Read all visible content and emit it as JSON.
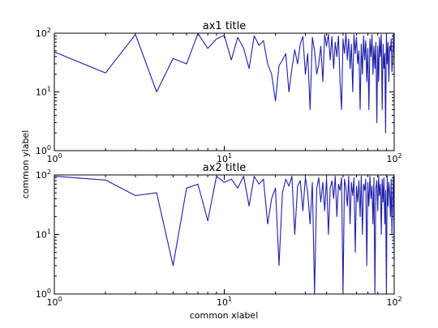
{
  "figure": {
    "common_xlabel": "common xlabel",
    "common_ylabel": "common ylabel"
  },
  "chart_data": [
    {
      "type": "line",
      "title": "ax1 title",
      "xlabel": "",
      "ylabel": "",
      "xscale": "log",
      "yscale": "log",
      "xlim": [
        1,
        100
      ],
      "ylim": [
        1,
        100
      ],
      "grid": false,
      "legend": "none",
      "line_color": "#1f1fa8",
      "xticks": [
        {
          "value": 1,
          "label": "10",
          "sup": "0"
        },
        {
          "value": 10,
          "label": "10",
          "sup": "1"
        },
        {
          "value": 100,
          "label": "10",
          "sup": "2"
        }
      ],
      "yticks": [
        {
          "value": 1,
          "label": "10",
          "sup": "0"
        },
        {
          "value": 10,
          "label": "10",
          "sup": "1"
        },
        {
          "value": 100,
          "label": "10",
          "sup": "2"
        }
      ],
      "series": [
        {
          "x": [
            1,
            2,
            3,
            4,
            5,
            6,
            7,
            8,
            9,
            10,
            11,
            12,
            13,
            14,
            15,
            16,
            17,
            18,
            19,
            20,
            21,
            22,
            23,
            24,
            25,
            26,
            27,
            28,
            29,
            30,
            31,
            32,
            33,
            34,
            35,
            36,
            37,
            38,
            39,
            40,
            41,
            42,
            43,
            44,
            45,
            46,
            47,
            48,
            49,
            50,
            51,
            52,
            53,
            54,
            55,
            56,
            57,
            58,
            59,
            60,
            61,
            62,
            63,
            64,
            65,
            66,
            67,
            68,
            69,
            70,
            71,
            72,
            73,
            74,
            75,
            76,
            77,
            78,
            79,
            80,
            81,
            82,
            83,
            84,
            85,
            86,
            87,
            88,
            89,
            90,
            91,
            92,
            93,
            94,
            95,
            96,
            97,
            98,
            99,
            100
          ],
          "y": [
            48,
            21,
            95,
            10,
            37,
            30,
            99,
            55,
            80,
            92,
            35,
            85,
            55,
            25,
            90,
            62,
            75,
            30,
            20,
            7,
            28,
            35,
            45,
            10,
            25,
            52,
            30,
            65,
            88,
            20,
            45,
            5,
            85,
            50,
            20,
            30,
            60,
            15,
            95,
            60,
            95,
            35,
            88,
            25,
            70,
            40,
            90,
            15,
            5,
            80,
            45,
            100,
            35,
            80,
            25,
            65,
            10,
            95,
            45,
            85,
            30,
            50,
            5,
            65,
            20,
            90,
            35,
            75,
            15,
            55,
            5,
            80,
            40,
            95,
            20,
            60,
            25,
            70,
            3,
            60,
            15,
            85,
            40,
            95,
            5,
            65,
            25,
            45,
            2,
            95,
            30,
            70,
            15,
            60,
            50,
            80,
            22,
            35,
            100,
            40
          ]
        }
      ]
    },
    {
      "type": "line",
      "title": "ax2 title",
      "xlabel": "",
      "ylabel": "",
      "xscale": "log",
      "yscale": "log",
      "xlim": [
        1,
        100
      ],
      "ylim": [
        1,
        100
      ],
      "grid": false,
      "legend": "none",
      "line_color": "#1f1fa8",
      "xticks": [
        {
          "value": 1,
          "label": "10",
          "sup": "0"
        },
        {
          "value": 10,
          "label": "10",
          "sup": "1"
        },
        {
          "value": 100,
          "label": "10",
          "sup": "2"
        }
      ],
      "yticks": [
        {
          "value": 1,
          "label": "10",
          "sup": "0"
        },
        {
          "value": 10,
          "label": "10",
          "sup": "1"
        },
        {
          "value": 100,
          "label": "10",
          "sup": "2"
        }
      ],
      "series": [
        {
          "x": [
            1,
            2,
            3,
            4,
            5,
            6,
            7,
            8,
            9,
            10,
            11,
            12,
            13,
            14,
            15,
            16,
            17,
            18,
            19,
            20,
            21,
            22,
            23,
            24,
            25,
            26,
            27,
            28,
            29,
            30,
            31,
            32,
            33,
            34,
            35,
            36,
            37,
            38,
            39,
            40,
            41,
            42,
            43,
            44,
            45,
            46,
            47,
            48,
            49,
            50,
            51,
            52,
            53,
            54,
            55,
            56,
            57,
            58,
            59,
            60,
            61,
            62,
            63,
            64,
            65,
            66,
            67,
            68,
            69,
            70,
            71,
            72,
            73,
            74,
            75,
            76,
            77,
            78,
            79,
            80,
            81,
            82,
            83,
            84,
            85,
            86,
            87,
            88,
            89,
            90,
            91,
            92,
            93,
            94,
            95,
            96,
            97,
            98,
            99,
            100
          ],
          "y": [
            95,
            82,
            45,
            50,
            3,
            60,
            70,
            17,
            95,
            75,
            85,
            60,
            95,
            30,
            95,
            70,
            85,
            15,
            40,
            60,
            3,
            50,
            85,
            65,
            95,
            10,
            65,
            80,
            25,
            90,
            50,
            15,
            75,
            1,
            60,
            90,
            35,
            75,
            25,
            90,
            10,
            60,
            80,
            40,
            95,
            20,
            70,
            55,
            90,
            1,
            85,
            60,
            30,
            95,
            15,
            75,
            45,
            90,
            5,
            65,
            35,
            80,
            20,
            95,
            10,
            70,
            55,
            85,
            3,
            75,
            30,
            95,
            40,
            65,
            15,
            90,
            1,
            60,
            80,
            25,
            95,
            45,
            70,
            10,
            85,
            35,
            90,
            15,
            55,
            1,
            95,
            30,
            75,
            50,
            20,
            85,
            10,
            45,
            95,
            3
          ]
        }
      ]
    }
  ]
}
